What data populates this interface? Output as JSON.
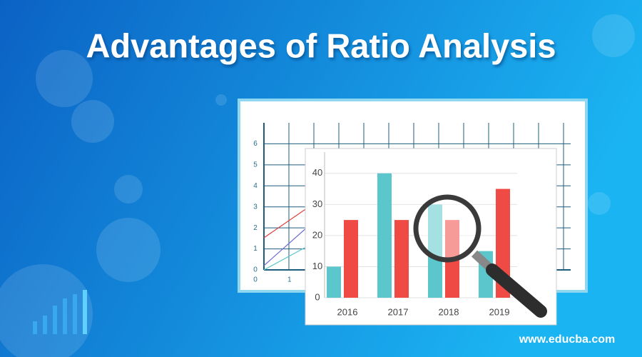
{
  "header": {
    "title": "Advantages of Ratio Analysis"
  },
  "footer": {
    "url": "www.educba.com"
  },
  "chart_data": [
    {
      "type": "bar",
      "categories": [
        "2016",
        "2017",
        "2018",
        "2019"
      ],
      "series": [
        {
          "color": "#5bc6cb",
          "values": [
            10,
            40,
            30,
            15
          ]
        },
        {
          "color": "#ef4a44",
          "values": [
            25,
            25,
            25,
            35
          ]
        }
      ],
      "ylim": [
        0,
        45
      ],
      "yticks": [
        0,
        10,
        20,
        30,
        40
      ],
      "grid": true
    },
    {
      "type": "grid",
      "xlim": [
        0,
        12
      ],
      "xticks": [
        0,
        1
      ],
      "ylim": [
        0,
        7
      ],
      "yticks": [
        0,
        1,
        2,
        3,
        4,
        5,
        6
      ],
      "grid": true
    }
  ]
}
